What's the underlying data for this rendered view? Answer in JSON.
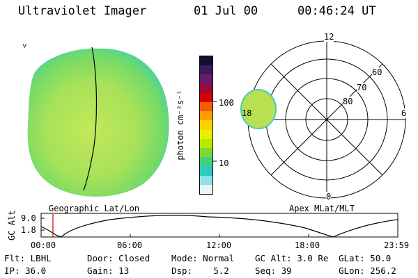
{
  "header": {
    "instrument": "Ultraviolet Imager",
    "date": "01 Jul 00",
    "time": "00:46:24 UT"
  },
  "colorbar": {
    "unit_label": "photon cm⁻²s⁻¹",
    "ticks": [
      "100",
      "10"
    ],
    "colors": [
      "#1a0a30",
      "#3a1a5a",
      "#6a1a6a",
      "#9a0a3a",
      "#d80000",
      "#f06000",
      "#ff9a00",
      "#ffd000",
      "#e8f000",
      "#b8e800",
      "#80d830",
      "#40d080",
      "#30c8c0",
      "#90e0e8",
      "#e8f4f8"
    ]
  },
  "left_panel": {
    "caption": "Geographic Lat/Lon",
    "marker": "˅"
  },
  "polar_panel": {
    "caption": "Apex MLat/MLT",
    "mlt_labels": {
      "top": "12",
      "bottom": "0",
      "left": "18",
      "right": "6"
    },
    "lat_labels": [
      "60",
      "70",
      "80"
    ]
  },
  "altitude_plot": {
    "ylabel": "GC Alt",
    "yticks": [
      "9.0",
      "1.8"
    ],
    "xticks": [
      "00:00",
      "06:00",
      "12:00",
      "18:00",
      "23:59"
    ],
    "current_time_color": "#d00000"
  },
  "info": {
    "row1": [
      {
        "label": "Flt:",
        "value": "LBHL"
      },
      {
        "label": "Door:",
        "value": "Closed"
      },
      {
        "label": "Mode:",
        "value": "Normal"
      },
      {
        "label": "GC Alt:",
        "value": "3.0 Re"
      },
      {
        "label": "GLat:",
        "value": "50.0"
      }
    ],
    "row2": [
      {
        "label": "IP:",
        "value": "36.0"
      },
      {
        "label": "Gain:",
        "value": "13"
      },
      {
        "label": "Dsp:",
        "value": "5.2"
      },
      {
        "label": "Seq:",
        "value": "39"
      },
      {
        "label": "GLon:",
        "value": "256.2"
      }
    ]
  }
}
